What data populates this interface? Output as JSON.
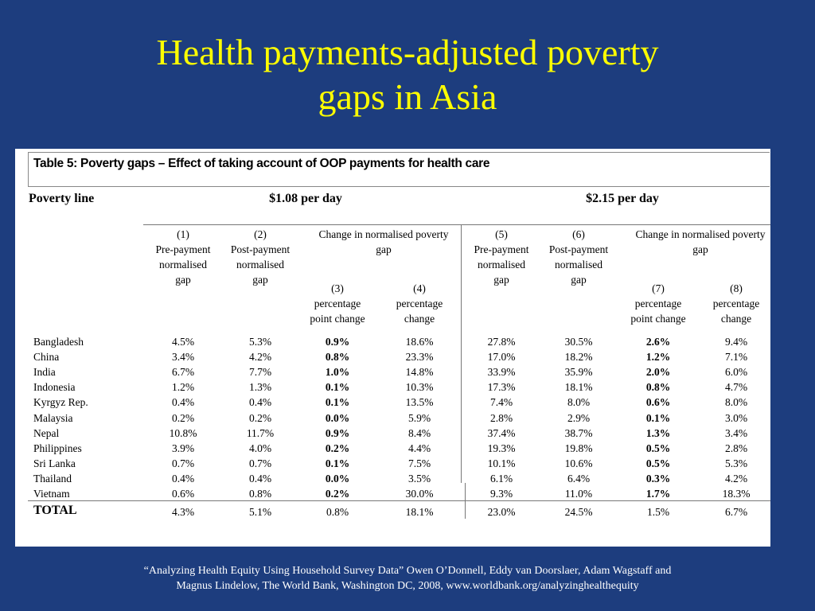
{
  "slide": {
    "title_line1": "Health payments-adjusted poverty",
    "title_line2": "gaps in Asia",
    "footer_line1": "“Analyzing Health Equity Using Household Survey Data” Owen O’Donnell, Eddy van Doorslaer, Adam Wagstaff and",
    "footer_line2": "Magnus Lindelow, The World Bank, Washington DC, 2008, www.worldbank.org/analyzinghealthequity"
  },
  "table": {
    "caption": "Table 5: Poverty gaps – Effect of taking account of OOP payments for health care",
    "poverty_line_label": "Poverty line",
    "group1": "$1.08 per day",
    "group2": "$2.15 per day",
    "col1": [
      "(1)",
      "Pre-payment",
      "normalised",
      "gap"
    ],
    "col2": [
      "(2)",
      "Post-payment",
      "normalised",
      "gap"
    ],
    "change_header1": [
      "Change in normalised poverty",
      "gap"
    ],
    "col3": [
      "(3)",
      "percentage",
      "point change"
    ],
    "col4": [
      "(4)",
      "percentage",
      "change"
    ],
    "col5": [
      "(5)",
      "Pre-payment",
      "normalised",
      "gap"
    ],
    "col6": [
      "(6)",
      "Post-payment",
      "normalised",
      "gap"
    ],
    "change_header2": [
      "Change in normalised poverty",
      "gap"
    ],
    "col7": [
      "(7)",
      "percentage",
      "point change"
    ],
    "col8": [
      "(8)",
      "percentage",
      "change"
    ],
    "rows": [
      {
        "country": "Bangladesh",
        "v": [
          "4.5%",
          "5.3%",
          "0.9%",
          "18.6%",
          "27.8%",
          "30.5%",
          "2.6%",
          "9.4%"
        ]
      },
      {
        "country": "China",
        "v": [
          "3.4%",
          "4.2%",
          "0.8%",
          "23.3%",
          "17.0%",
          "18.2%",
          "1.2%",
          "7.1%"
        ]
      },
      {
        "country": "India",
        "v": [
          "6.7%",
          "7.7%",
          "1.0%",
          "14.8%",
          "33.9%",
          "35.9%",
          "2.0%",
          "6.0%"
        ]
      },
      {
        "country": "Indonesia",
        "v": [
          "1.2%",
          "1.3%",
          "0.1%",
          "10.3%",
          "17.3%",
          "18.1%",
          "0.8%",
          "4.7%"
        ]
      },
      {
        "country": "Kyrgyz Rep.",
        "v": [
          "0.4%",
          "0.4%",
          "0.1%",
          "13.5%",
          "7.4%",
          "8.0%",
          "0.6%",
          "8.0%"
        ]
      },
      {
        "country": "Malaysia",
        "v": [
          "0.2%",
          "0.2%",
          "0.0%",
          "5.9%",
          "2.8%",
          "2.9%",
          "0.1%",
          "3.0%"
        ]
      },
      {
        "country": "Nepal",
        "v": [
          "10.8%",
          "11.7%",
          "0.9%",
          "8.4%",
          "37.4%",
          "38.7%",
          "1.3%",
          "3.4%"
        ]
      },
      {
        "country": "Philippines",
        "v": [
          "3.9%",
          "4.0%",
          "0.2%",
          "4.4%",
          "19.3%",
          "19.8%",
          "0.5%",
          "2.8%"
        ]
      },
      {
        "country": "Sri Lanka",
        "v": [
          "0.7%",
          "0.7%",
          "0.1%",
          "7.5%",
          "10.1%",
          "10.6%",
          "0.5%",
          "5.3%"
        ]
      },
      {
        "country": "Thailand",
        "v": [
          "0.4%",
          "0.4%",
          "0.0%",
          "3.5%",
          "6.1%",
          "6.4%",
          "0.3%",
          "4.2%"
        ]
      },
      {
        "country": "Vietnam",
        "v": [
          "0.6%",
          "0.8%",
          "0.2%",
          "30.0%",
          "9.3%",
          "11.0%",
          "1.7%",
          "18.3%"
        ]
      }
    ],
    "total": {
      "country": "TOTAL",
      "v": [
        "4.3%",
        "5.1%",
        "0.8%",
        "18.1%",
        "23.0%",
        "24.5%",
        "1.5%",
        "6.7%"
      ]
    }
  }
}
